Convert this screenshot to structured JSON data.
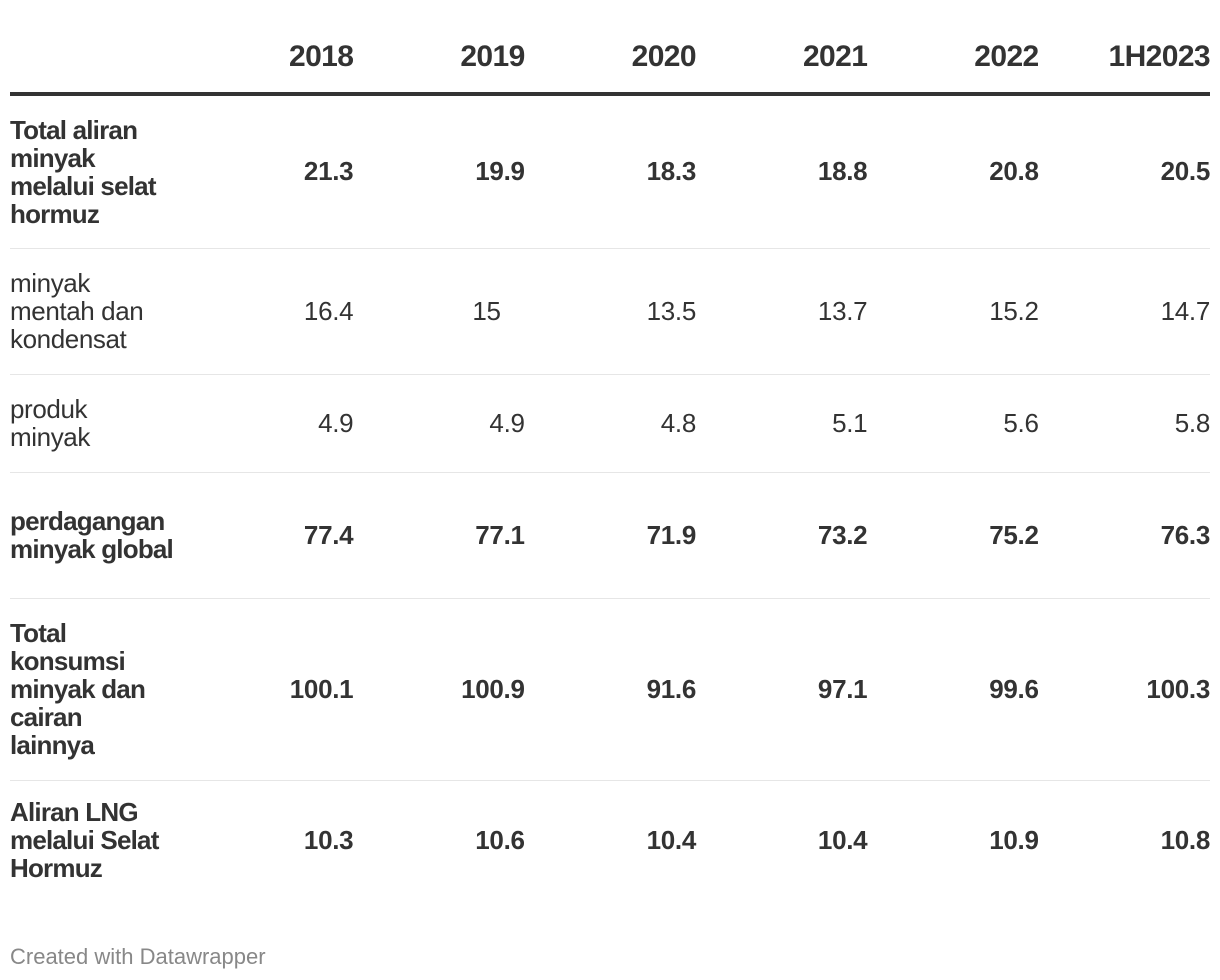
{
  "chart_data": {
    "type": "table",
    "columns": [
      "",
      "2018",
      "2019",
      "2020",
      "2021",
      "2022",
      "1H2023"
    ],
    "rows": [
      {
        "label": "Total aliran minyak melalui selat hormuz",
        "bold": true,
        "values": [
          "21.3",
          "19.9",
          "18.3",
          "18.8",
          "20.8",
          "20.5"
        ]
      },
      {
        "label": "minyak mentah dan kondensat",
        "bold": false,
        "values": [
          "16.4",
          "15",
          "13.5",
          "13.7",
          "15.2",
          "14.7"
        ]
      },
      {
        "label": "produk minyak",
        "bold": false,
        "values": [
          "4.9",
          "4.9",
          "4.8",
          "5.1",
          "5.6",
          "5.8"
        ]
      },
      {
        "label": "perdagangan minyak global",
        "bold": true,
        "values": [
          "77.4",
          "77.1",
          "71.9",
          "73.2",
          "75.2",
          "76.3"
        ]
      },
      {
        "label": "Total konsumsi minyak dan cairan lainnya",
        "bold": true,
        "values": [
          "100.1",
          "100.9",
          "91.6",
          "97.1",
          "99.6",
          "100.3"
        ]
      },
      {
        "label": "Aliran LNG melalui Selat Hormuz",
        "bold": true,
        "values": [
          "10.3",
          "10.6",
          "10.4",
          "10.4",
          "10.9",
          "10.8"
        ]
      }
    ]
  },
  "footer": {
    "credit": "Created with Datawrapper"
  }
}
